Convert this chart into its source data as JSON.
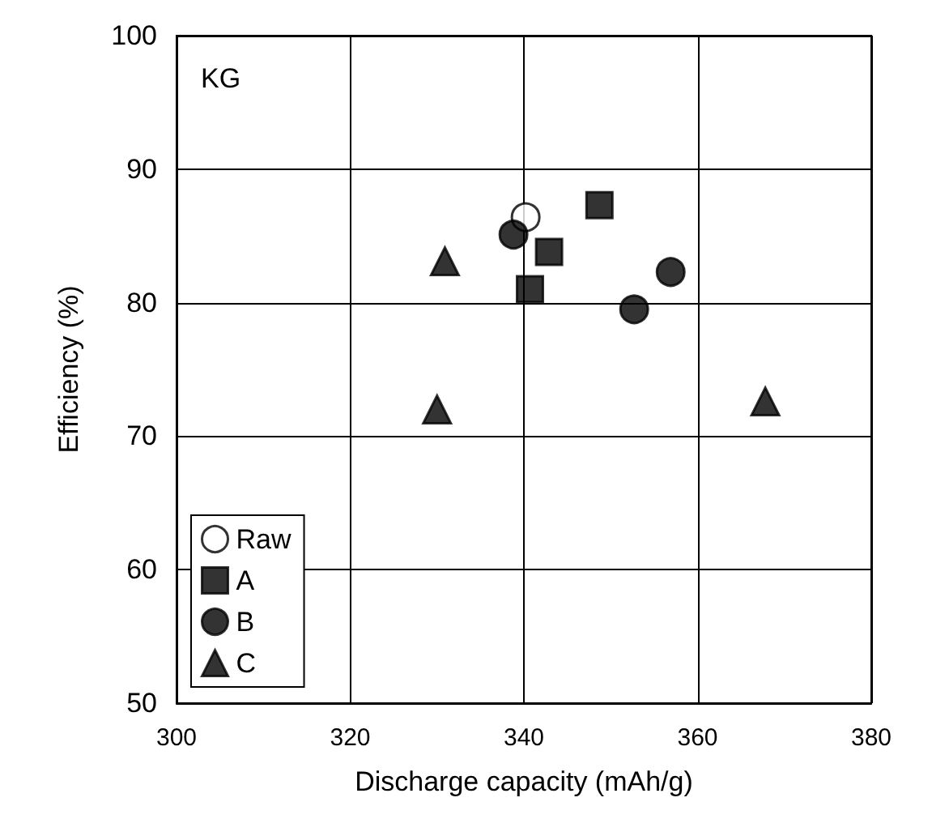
{
  "chart_data": {
    "type": "scatter",
    "xlabel": "Discharge capacity (mAh/g)",
    "ylabel": "Efficiency (%)",
    "annotations": [
      "KG"
    ],
    "xlim": [
      300,
      380
    ],
    "xticks": [
      300,
      320,
      340,
      360,
      380
    ],
    "ylim": [
      50,
      100
    ],
    "yticks": [
      50,
      60,
      70,
      80,
      90,
      100
    ],
    "grid": true,
    "legend": "bottom left",
    "series": [
      {
        "name": "Raw",
        "color": "#ffffff",
        "marker": "circle",
        "x": [
          340.2
        ],
        "values": [
          86.4
        ]
      },
      {
        "name": "A",
        "color": "#000000",
        "marker": "square",
        "x": [
          348.7,
          342.9,
          340.7
        ],
        "values": [
          87.3,
          83.8,
          81.0
        ]
      },
      {
        "name": "B",
        "color": "#000000",
        "marker": "circle",
        "x": [
          338.8,
          356.9,
          352.7
        ],
        "values": [
          85.1,
          82.3,
          79.5
        ]
      },
      {
        "name": "C",
        "color": "#000000",
        "marker": "triangle",
        "x": [
          330.9,
          330.0,
          367.8
        ],
        "values": [
          83.1,
          72.0,
          72.6
        ]
      }
    ]
  }
}
